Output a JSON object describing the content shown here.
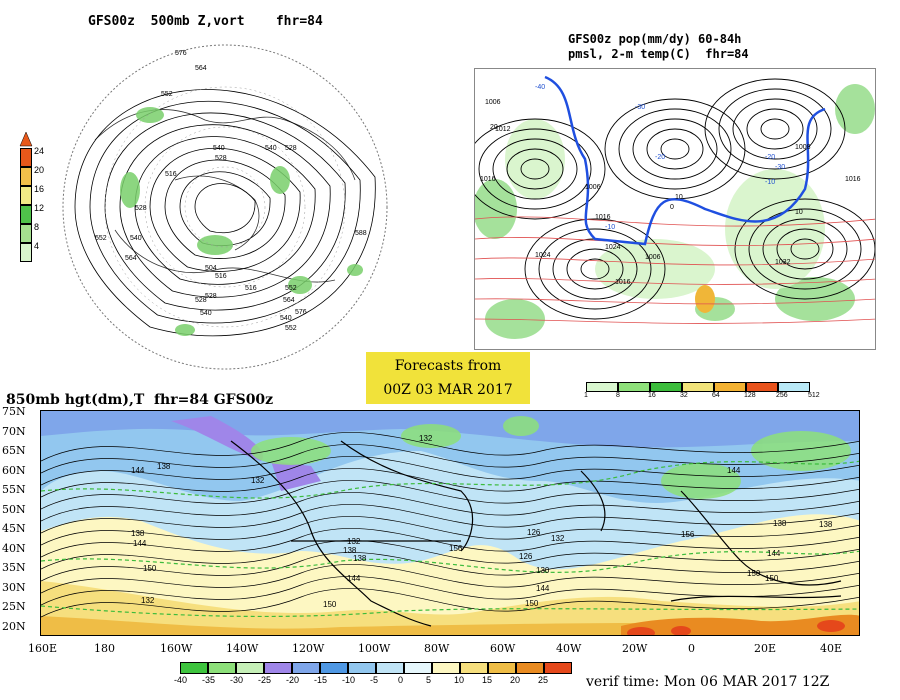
{
  "titles": {
    "p500": "GFS00z  500mb Z,vort    fhr=84",
    "pop_line1": "GFS00z pop(mm/dy) 60-84h",
    "pop_line2": "pmsl, 2-m temp(C)  fhr=84",
    "p850": "850mb hgt(dm),T  fhr=84 GFS00z",
    "banner_line1": "Forecasts from",
    "banner_line2": "00Z 03 MAR 2017",
    "verif": "verif time: Mon 06 MAR 2017 12Z"
  },
  "vort_colorbar": {
    "labels": [
      "24",
      "20",
      "16",
      "12",
      "8",
      "4"
    ],
    "colors": [
      "#e8581a",
      "#f3c04a",
      "#f1ea86",
      "#4fc24a",
      "#a5e08f",
      "#d8f5cc"
    ]
  },
  "pop_colorbar": {
    "labels": [
      "1",
      "8",
      "16",
      "32",
      "64",
      "128",
      "256",
      "512"
    ],
    "colors": [
      "#d9f7cf",
      "#8ee07a",
      "#3cbd3c",
      "#f1e37a",
      "#f3b233",
      "#e8531c",
      "#b9e9f7"
    ]
  },
  "temp_colorbar": {
    "labels": [
      "-40",
      "-35",
      "-30",
      "-25",
      "-20",
      "-15",
      "-10",
      "-5",
      "0",
      "5",
      "10",
      "15",
      "20",
      "25"
    ],
    "colors": [
      "#3ec43e",
      "#8de07a",
      "#c6f0b8",
      "#9f86e9",
      "#7fa6ea",
      "#4f98e4",
      "#92c7ef",
      "#c0e4f6",
      "#e6f7fc",
      "#fdf7c2",
      "#f6df7e",
      "#efbd46",
      "#e98b21",
      "#e5481b"
    ]
  },
  "p500_labels": [
    "576",
    "564",
    "552",
    "540",
    "528",
    "516",
    "528",
    "540",
    "552",
    "564",
    "528",
    "540",
    "504",
    "516",
    "528",
    "516",
    "528",
    "540",
    "552",
    "564",
    "576",
    "588",
    "540",
    "552"
  ],
  "pop_labels": [
    "1006",
    "1012",
    "1016",
    "1024",
    "1006",
    "1016",
    "1024",
    "1032",
    "1016",
    "1006",
    "1008",
    "1016",
    "-40",
    "-30",
    "-20",
    "-10",
    "10",
    "0",
    "-30",
    "-20",
    "-10",
    "10",
    "20"
  ],
  "p850_labels": [
    "132",
    "144",
    "138",
    "132",
    "138",
    "144",
    "150",
    "132",
    "126",
    "138",
    "144",
    "150",
    "132",
    "138",
    "156",
    "132",
    "126",
    "130",
    "144",
    "150",
    "156",
    "144",
    "138",
    "144",
    "150",
    "150",
    "138"
  ],
  "lat_labels": [
    "75N",
    "70N",
    "65N",
    "60N",
    "55N",
    "50N",
    "45N",
    "40N",
    "35N",
    "30N",
    "25N",
    "20N"
  ],
  "lon_labels": [
    "160E",
    "180",
    "160W",
    "140W",
    "120W",
    "100W",
    "80W",
    "60W",
    "40W",
    "20W",
    "0",
    "20E",
    "40E"
  ]
}
